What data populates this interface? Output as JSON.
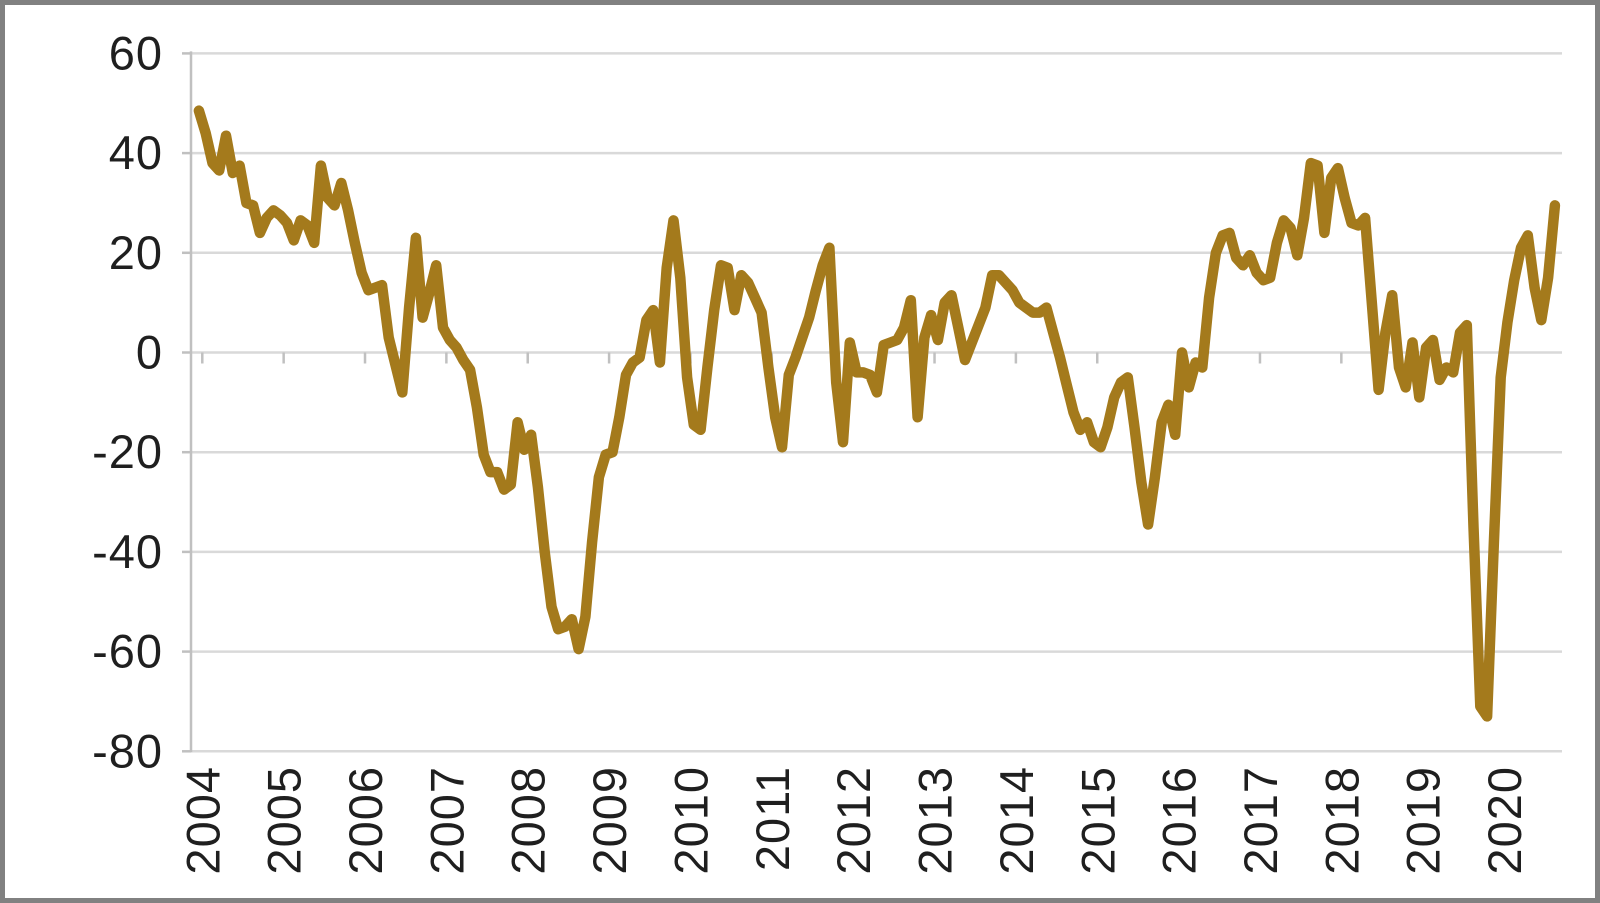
{
  "chart_data": {
    "type": "line",
    "title": "",
    "xlabel": "",
    "ylabel": "",
    "legend": "none",
    "grid": "horizontal",
    "frequency": "monthly",
    "x_start": "2004-06",
    "x_end": "2021-02",
    "ylim": [
      -80,
      60
    ],
    "y_tick_values": [
      60,
      40,
      20,
      0,
      -20,
      -40,
      -60,
      -80
    ],
    "y_tick_labels": [
      "60",
      "40",
      "20",
      "0",
      "-20",
      "-40",
      "-60",
      "-80"
    ],
    "x_tick_labels": [
      "2004",
      "2005",
      "2006",
      "2007",
      "2008",
      "2009",
      "2010",
      "2011",
      "2012",
      "2013",
      "2014",
      "2015",
      "2016",
      "2017",
      "2018",
      "2019",
      "2020"
    ],
    "line_color": "#A47A1C",
    "gridline_color": "#D9D9D9",
    "axis_color": "#C0C0C0",
    "text_color": "#1f1f1f",
    "frame_color": "#818181",
    "background_color": "#ffffff",
    "values": [
      48.5,
      44,
      38,
      36.5,
      43.5,
      36,
      37.5,
      30,
      29.5,
      24,
      27,
      28.5,
      27.5,
      26,
      22.5,
      26.5,
      25.5,
      22,
      37.5,
      31,
      29.5,
      34,
      28.5,
      22,
      16,
      12.5,
      13,
      13.5,
      3,
      -2.5,
      -8,
      9,
      23,
      7,
      12,
      17.5,
      5,
      2.5,
      1,
      -1.5,
      -3.5,
      -11,
      -20.5,
      -24,
      -24,
      -27.5,
      -26.5,
      -14,
      -19.5,
      -16.5,
      -27,
      -40,
      -51,
      -55.5,
      -55,
      -53.5,
      -59.5,
      -53,
      -38,
      -25,
      -20.5,
      -20,
      -13,
      -4.5,
      -2,
      -1,
      6.5,
      8.5,
      -2,
      17,
      26.5,
      15,
      -5,
      -14.5,
      -15.5,
      -3,
      8.5,
      17.5,
      17,
      8.5,
      15.5,
      14,
      11,
      8,
      -3,
      -13,
      -19,
      -4.5,
      -1,
      3,
      7,
      12.5,
      17.5,
      21,
      -6,
      -18,
      2,
      -4,
      -4,
      -4.5,
      -8,
      1.5,
      2,
      2.5,
      5,
      10.5,
      -13,
      3,
      7.5,
      2.5,
      10,
      11.5,
      5,
      -1.5,
      2,
      5.5,
      9,
      15.5,
      15.5,
      14,
      12.5,
      10,
      9,
      8,
      8,
      9,
      4,
      -1,
      -6.5,
      -12,
      -15.5,
      -14,
      -18,
      -19,
      -15,
      -9,
      -6,
      -5,
      -15,
      -26,
      -34.5,
      -25,
      -14,
      -10.5,
      -16.5,
      0,
      -7,
      -2,
      -3,
      11,
      20,
      23.5,
      24,
      19,
      17.5,
      19.5,
      16,
      14.5,
      15,
      22,
      26.5,
      25,
      19.5,
      27,
      38,
      37.5,
      24,
      35,
      37,
      31,
      26,
      25.5,
      27,
      10,
      -7.5,
      4,
      11.5,
      -3,
      -7,
      2,
      -9,
      1,
      2.5,
      -5.5,
      -3,
      -4,
      4,
      5.5,
      -35,
      -71,
      -73,
      -38,
      -5,
      6,
      14.5,
      21,
      23.5,
      13,
      6.5,
      15,
      29.5
    ]
  }
}
